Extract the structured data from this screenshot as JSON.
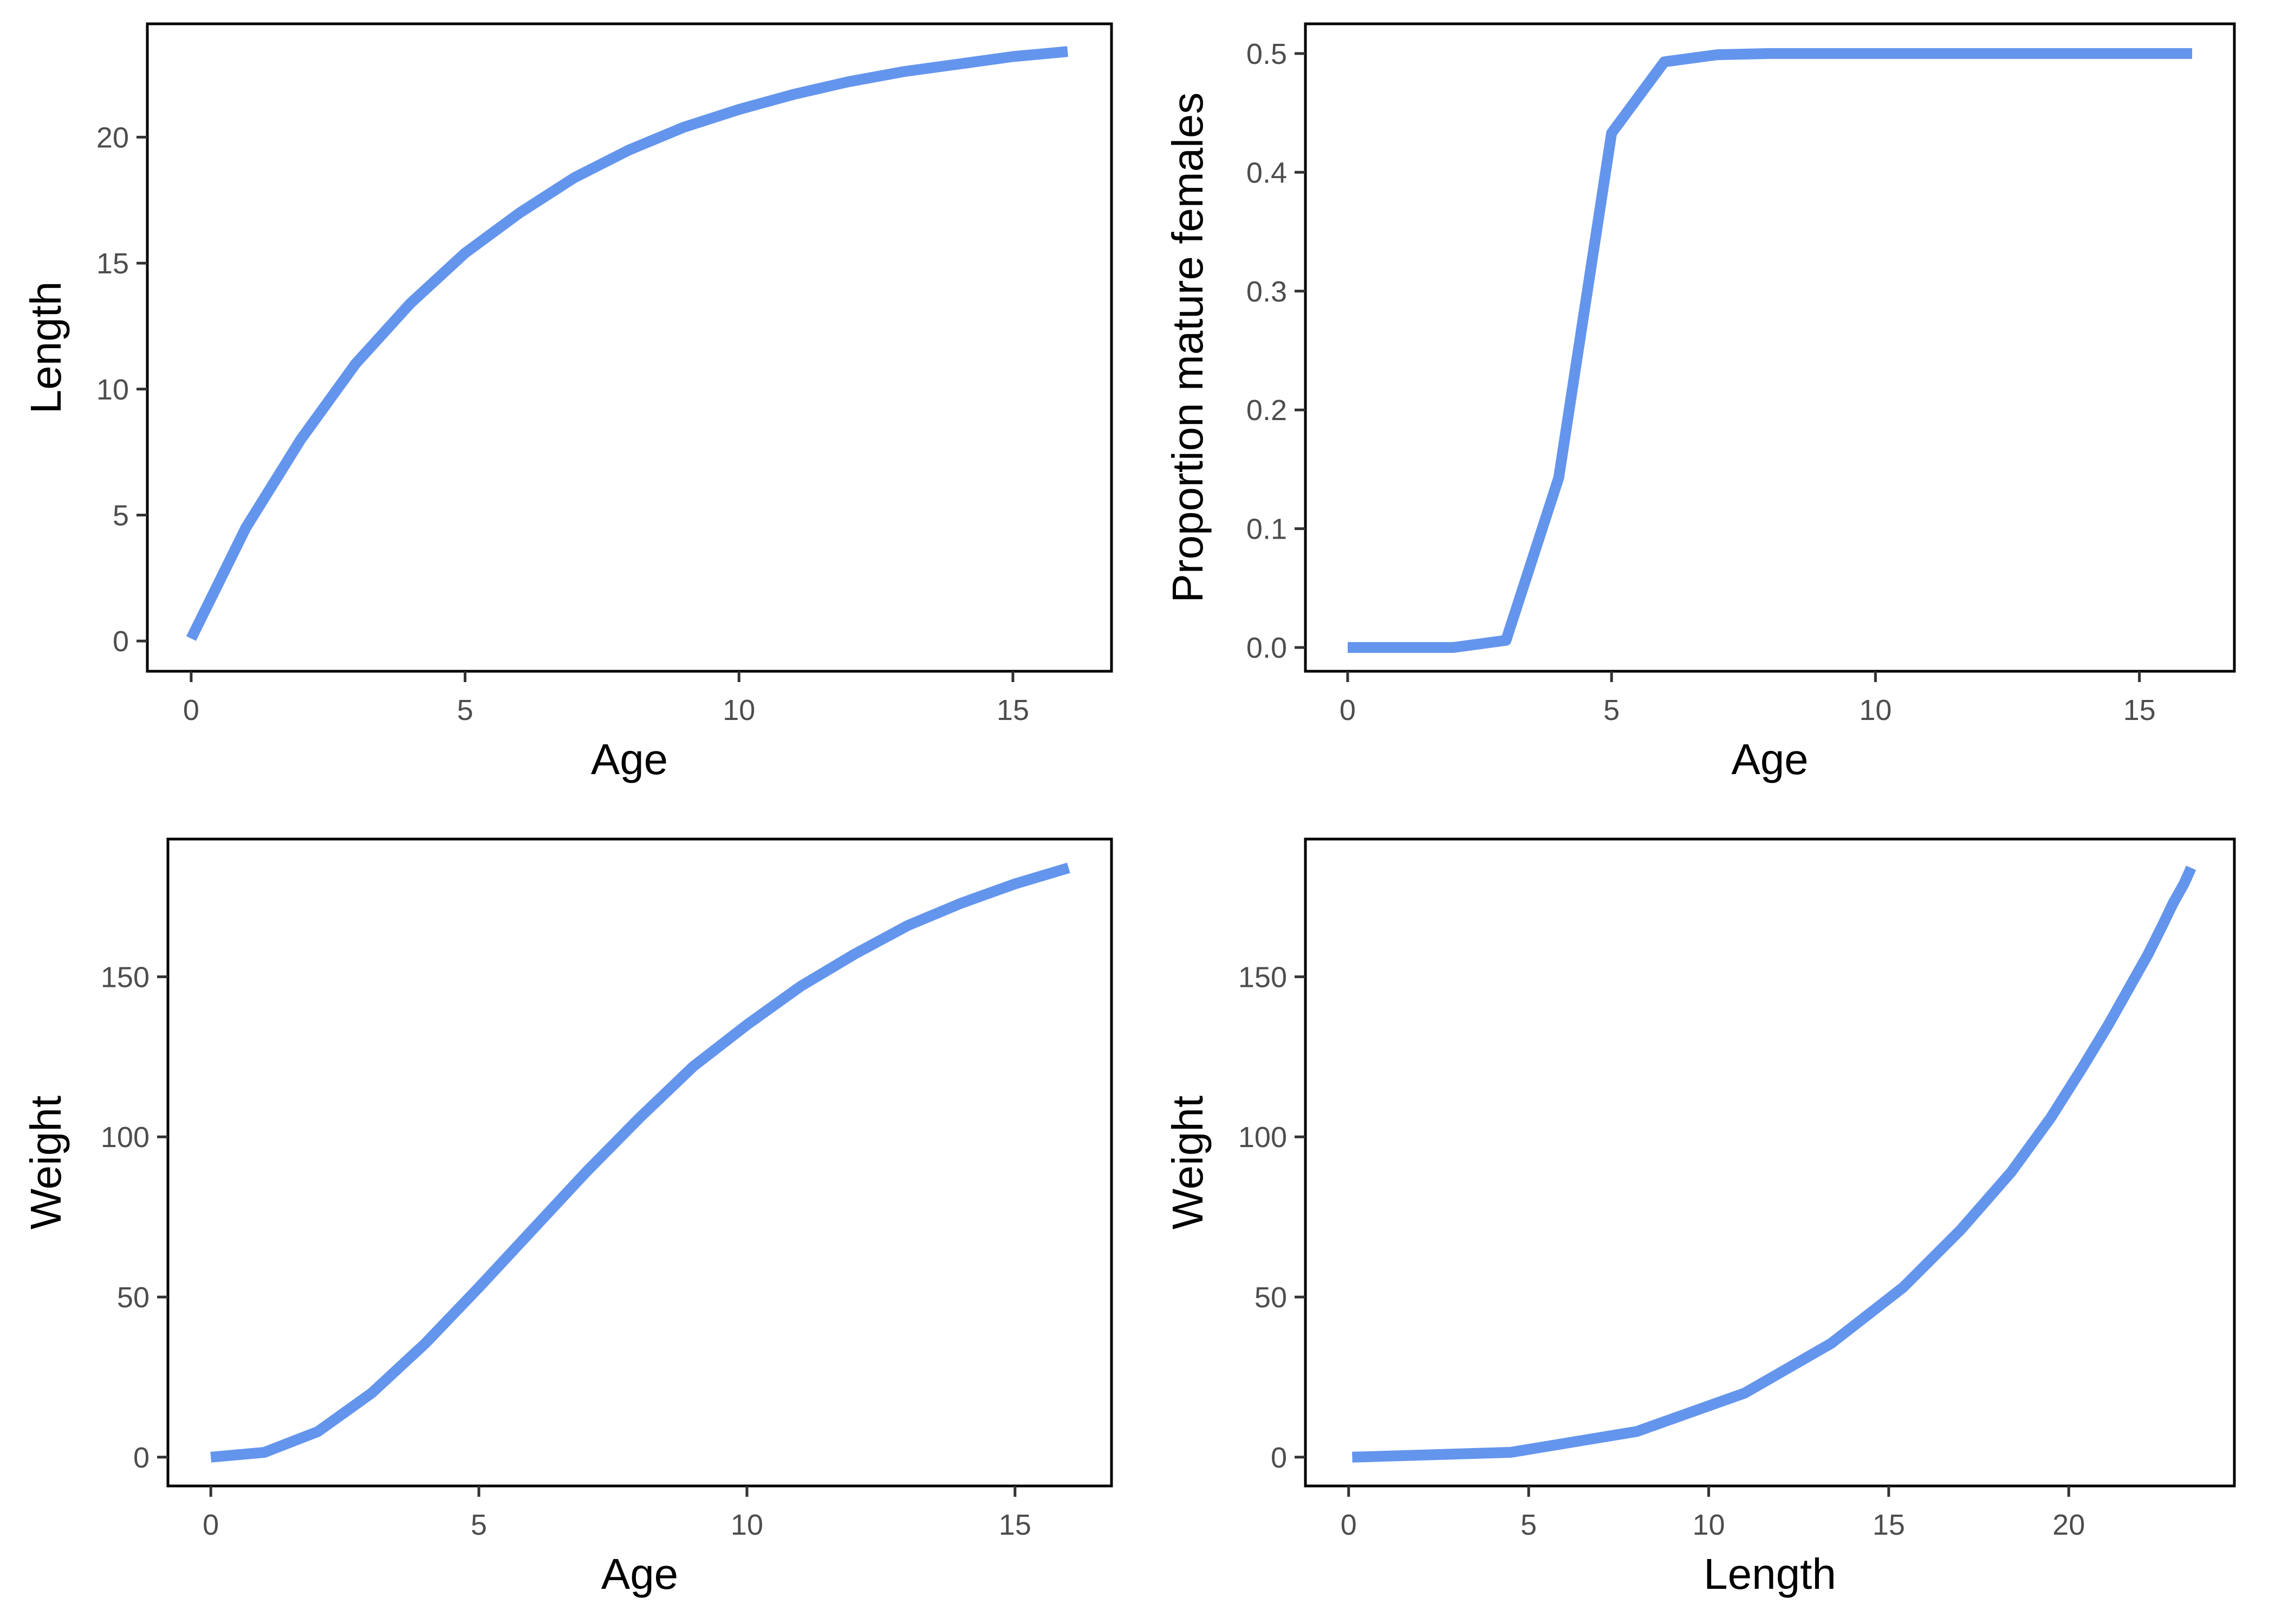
{
  "chart_data": [
    {
      "type": "line",
      "xlabel": "Age",
      "ylabel": "Length",
      "xlim": [
        -0.8,
        16.8
      ],
      "ylim": [
        -1.2,
        24.5
      ],
      "xticks": [
        0,
        5,
        10,
        15
      ],
      "yticks": [
        0,
        5,
        10,
        15,
        20
      ],
      "grid": false,
      "color": "#6495ED",
      "series": [
        {
          "x": [
            0,
            1,
            2,
            3,
            4,
            5,
            6,
            7,
            8,
            9,
            10,
            11,
            12,
            13,
            14,
            15,
            16
          ],
          "values": [
            0.1,
            4.5,
            8.0,
            11.0,
            13.4,
            15.4,
            17.0,
            18.4,
            19.5,
            20.4,
            21.1,
            21.7,
            22.2,
            22.6,
            22.9,
            23.2,
            23.4
          ]
        }
      ]
    },
    {
      "type": "line",
      "xlabel": "Age",
      "ylabel": "Proportion mature females",
      "xlim": [
        -0.8,
        16.8
      ],
      "ylim": [
        -0.02,
        0.525
      ],
      "xticks": [
        0,
        5,
        10,
        15
      ],
      "yticks": [
        0.0,
        0.1,
        0.2,
        0.3,
        0.4,
        0.5
      ],
      "ytick_labels": [
        "0.0",
        "0.1",
        "0.2",
        "0.3",
        "0.4",
        "0.5"
      ],
      "grid": false,
      "color": "#6495ED",
      "series": [
        {
          "x": [
            0,
            1,
            2,
            3,
            4,
            5,
            6,
            7,
            8,
            9,
            10,
            11,
            12,
            13,
            14,
            15,
            16
          ],
          "values": [
            0.0,
            0.0,
            0.0,
            0.006,
            0.143,
            0.433,
            0.493,
            0.499,
            0.5,
            0.5,
            0.5,
            0.5,
            0.5,
            0.5,
            0.5,
            0.5,
            0.5
          ]
        }
      ]
    },
    {
      "type": "line",
      "xlabel": "Age",
      "ylabel": "Weight",
      "xlim": [
        -0.8,
        16.8
      ],
      "ylim": [
        -9,
        193
      ],
      "xticks": [
        0,
        5,
        10,
        15
      ],
      "yticks": [
        0,
        50,
        100,
        150
      ],
      "grid": false,
      "color": "#6495ED",
      "series": [
        {
          "x": [
            0,
            1,
            2,
            3,
            4,
            5,
            6,
            7,
            8,
            9,
            10,
            11,
            12,
            13,
            14,
            15,
            16
          ],
          "values": [
            0,
            1.5,
            8,
            20,
            35.5,
            53,
            71,
            89,
            106,
            122,
            135,
            147,
            157,
            166,
            173,
            179,
            184
          ]
        }
      ]
    },
    {
      "type": "line",
      "xlabel": "Length",
      "ylabel": "Weight",
      "xlim": [
        -1.2,
        24.6
      ],
      "ylim": [
        -9,
        193
      ],
      "xticks": [
        0,
        5,
        10,
        15,
        20
      ],
      "yticks": [
        0,
        50,
        100,
        150
      ],
      "grid": false,
      "color": "#6495ED",
      "series": [
        {
          "x": [
            0.1,
            4.5,
            8.0,
            11.0,
            13.4,
            15.4,
            17.0,
            18.4,
            19.5,
            20.4,
            21.1,
            21.7,
            22.2,
            22.6,
            22.9,
            23.2,
            23.4
          ],
          "values": [
            0,
            1.5,
            8,
            20,
            35.5,
            53,
            71,
            89,
            106,
            122,
            135,
            147,
            157,
            166,
            173,
            179,
            184
          ]
        }
      ]
    }
  ]
}
